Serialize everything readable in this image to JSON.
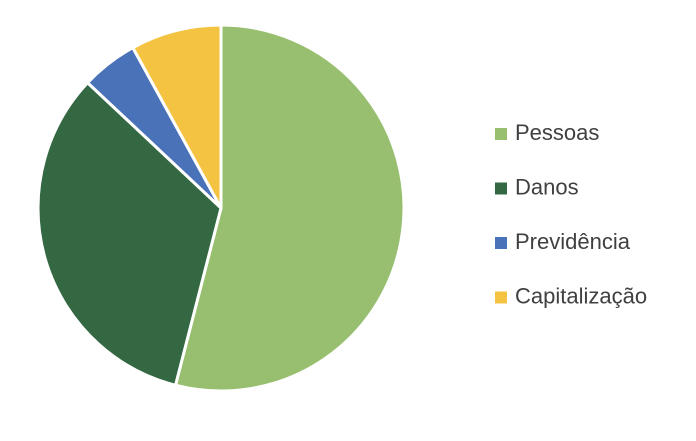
{
  "chart_data": {
    "type": "pie",
    "categories": [
      "Pessoas",
      "Danos",
      "Previdência",
      "Capitalização"
    ],
    "values": [
      54,
      33,
      5,
      8
    ],
    "colors": [
      "#97bf6f",
      "#336843",
      "#4a72b8",
      "#f5c342"
    ],
    "legend": "right"
  }
}
